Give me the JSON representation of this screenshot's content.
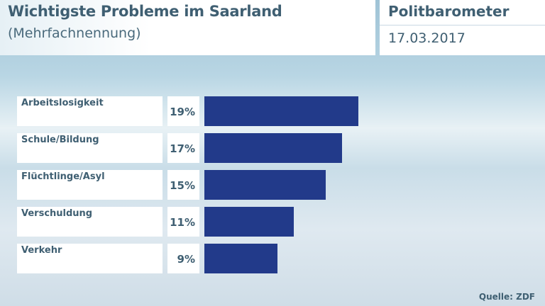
{
  "header": {
    "title": "Wichtigste Probleme im Saarland",
    "subtitle": "(Mehrfachnennung)",
    "brand": "Politbarometer",
    "date": "17.03.2017"
  },
  "chart_data": {
    "type": "bar",
    "orientation": "horizontal",
    "title": "Wichtigste Probleme im Saarland",
    "subtitle": "(Mehrfachnennung)",
    "categories": [
      "Arbeitslosigkeit",
      "Schule/Bildung",
      "Flüchtlinge/Asyl",
      "Verschuldung",
      "Verkehr"
    ],
    "values": [
      19,
      17,
      15,
      11,
      9
    ],
    "value_labels": [
      "19%",
      "17%",
      "15%",
      "11%",
      "9%"
    ],
    "unit": "%",
    "bar_color": "#223a8a",
    "grid": false
  },
  "source": "Quelle: ZDF"
}
